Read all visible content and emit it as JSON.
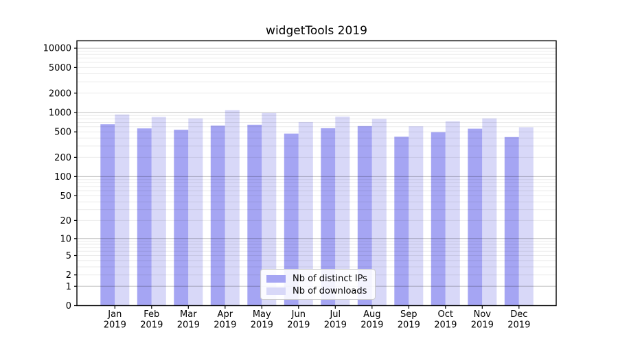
{
  "title": "widgetTools 2019",
  "chart_data": {
    "type": "bar",
    "title": "widgetTools 2019",
    "scale": "log1p",
    "grid": true,
    "legend_position": "lower center",
    "xlabel": "",
    "ylabel": "",
    "ylim": [
      0,
      13000
    ],
    "yticks": [
      0,
      1,
      2,
      5,
      10,
      20,
      50,
      100,
      200,
      500,
      1000,
      2000,
      5000,
      10000
    ],
    "categories": [
      "Jan 2019",
      "Feb 2019",
      "Mar 2019",
      "Apr 2019",
      "May 2019",
      "Jun 2019",
      "Jul 2019",
      "Aug 2019",
      "Sep 2019",
      "Oct 2019",
      "Nov 2019",
      "Dec 2019"
    ],
    "series": [
      {
        "name": "Nb of distinct IPs",
        "color": "#a5a5f3",
        "values": [
          655,
          565,
          540,
          625,
          645,
          470,
          570,
          615,
          420,
          495,
          560,
          415
        ]
      },
      {
        "name": "Nb of downloads",
        "color": "#d8d8f8",
        "values": [
          930,
          855,
          810,
          1090,
          980,
          710,
          865,
          795,
          610,
          730,
          810,
          590
        ]
      }
    ],
    "colors": {
      "major_grid": "rgba(0,0,0,0.25)",
      "minor_grid": "rgba(0,0,0,0.08)",
      "axis": "#000000",
      "text": "#000000"
    }
  }
}
